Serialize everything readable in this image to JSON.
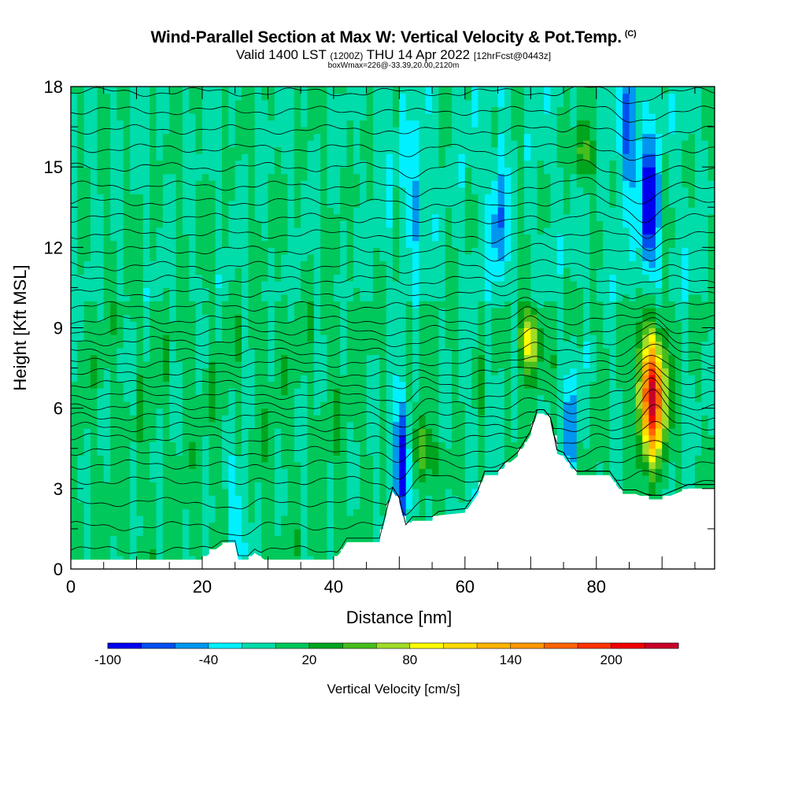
{
  "header": {
    "title": "Wind-Parallel Section at Max W: Vertical Velocity & Pot.Temp.",
    "copyright": "(C)",
    "valid_prefix": "Valid 1400 LST",
    "valid_utc": "(1200Z)",
    "valid_date": "THU 14 Apr 2022",
    "forecast": "[12hrFcst@0443z]",
    "box_info": "boxWmax=226@-33.39,20.00,2120m"
  },
  "chart_data": {
    "type": "heatmap",
    "xlabel": "Distance [nm]",
    "ylabel": "Height [Kft MSL]",
    "xlim": [
      0,
      98
    ],
    "ylim": [
      0,
      18
    ],
    "x_ticks": [
      "0",
      "20",
      "40",
      "60",
      "80"
    ],
    "x_tick_values": [
      0,
      20,
      40,
      60,
      80
    ],
    "y_ticks": [
      "0",
      "3",
      "6",
      "9",
      "12",
      "15",
      "18"
    ],
    "y_tick_values": [
      0,
      3,
      6,
      9,
      12,
      15,
      18
    ],
    "colorbar": {
      "label": "Vertical Velocity [cm/s]",
      "tick_labels": [
        "-100",
        "-40",
        "20",
        "80",
        "140",
        "200"
      ],
      "levels": [
        -100,
        -80,
        -60,
        -40,
        -20,
        0,
        20,
        40,
        60,
        80,
        100,
        120,
        140,
        160,
        180,
        200,
        220,
        240
      ],
      "colors": [
        "#0000ee",
        "#0050f0",
        "#0096f0",
        "#00f0ff",
        "#00dcaa",
        "#00c85a",
        "#00a51e",
        "#46be1e",
        "#a0dc28",
        "#ffff00",
        "#ffdc00",
        "#ffb400",
        "#ff9600",
        "#ff6400",
        "#ff3200",
        "#f00000",
        "#c80028"
      ]
    },
    "terrain": [
      [
        0,
        0.35
      ],
      [
        10,
        0.35
      ],
      [
        20,
        0.35
      ],
      [
        21,
        0.55
      ],
      [
        23,
        0.9
      ],
      [
        25,
        0.9
      ],
      [
        25.5,
        0.35
      ],
      [
        27,
        0.35
      ],
      [
        28,
        0.6
      ],
      [
        29.5,
        0.35
      ],
      [
        40,
        0.35
      ],
      [
        41,
        0.6
      ],
      [
        42,
        1.0
      ],
      [
        47,
        1.0
      ],
      [
        48,
        2.0
      ],
      [
        49,
        2.9
      ],
      [
        50,
        2.5
      ],
      [
        51,
        1.5
      ],
      [
        52,
        1.8
      ],
      [
        55,
        1.8
      ],
      [
        56,
        2.0
      ],
      [
        60,
        2.1
      ],
      [
        62,
        2.8
      ],
      [
        63,
        3.5
      ],
      [
        65,
        3.5
      ],
      [
        66,
        3.8
      ],
      [
        68,
        4.2
      ],
      [
        70,
        5.0
      ],
      [
        71,
        5.8
      ],
      [
        72,
        5.8
      ],
      [
        73,
        5.5
      ],
      [
        74,
        4.3
      ],
      [
        75,
        4.2
      ],
      [
        76,
        3.8
      ],
      [
        77,
        3.5
      ],
      [
        80,
        3.5
      ],
      [
        82,
        3.5
      ],
      [
        84,
        2.8
      ],
      [
        86,
        2.8
      ],
      [
        88,
        2.6
      ],
      [
        90,
        2.6
      ],
      [
        92,
        2.8
      ],
      [
        94,
        3.0
      ],
      [
        98,
        3.0
      ]
    ],
    "updrafts": [
      {
        "x": 88.5,
        "z": 6.5,
        "w": 226
      },
      {
        "x": 70,
        "z": 8.5,
        "w": 95
      },
      {
        "x": 53.5,
        "z": 4.5,
        "w": 70
      },
      {
        "x": 78,
        "z": 15.5,
        "w": 60
      }
    ],
    "downdrafts": [
      {
        "x": 50.5,
        "z": 4.2,
        "w": -90
      },
      {
        "x": 88,
        "z": 13.5,
        "w": -100
      },
      {
        "x": 85,
        "z": 16.5,
        "w": -70
      },
      {
        "x": 65,
        "z": 13,
        "w": -50
      },
      {
        "x": 52,
        "z": 14,
        "w": -45
      },
      {
        "x": 25.5,
        "z": 1.5,
        "w": -50
      },
      {
        "x": 76,
        "z": 5,
        "w": -45
      }
    ],
    "isentropes_z": [
      0.7,
      1.6,
      2.5,
      3.3,
      3.9,
      4.4,
      4.9,
      5.3,
      5.7,
      6.1,
      6.5,
      6.9,
      7.3,
      7.7,
      8.1,
      8.5,
      8.9,
      9.3,
      9.8,
      10.3,
      10.8,
      11.3,
      11.9,
      12.5,
      13.1,
      13.7,
      14.3,
      15.0,
      15.7,
      16.4,
      17.1,
      17.8
    ]
  }
}
